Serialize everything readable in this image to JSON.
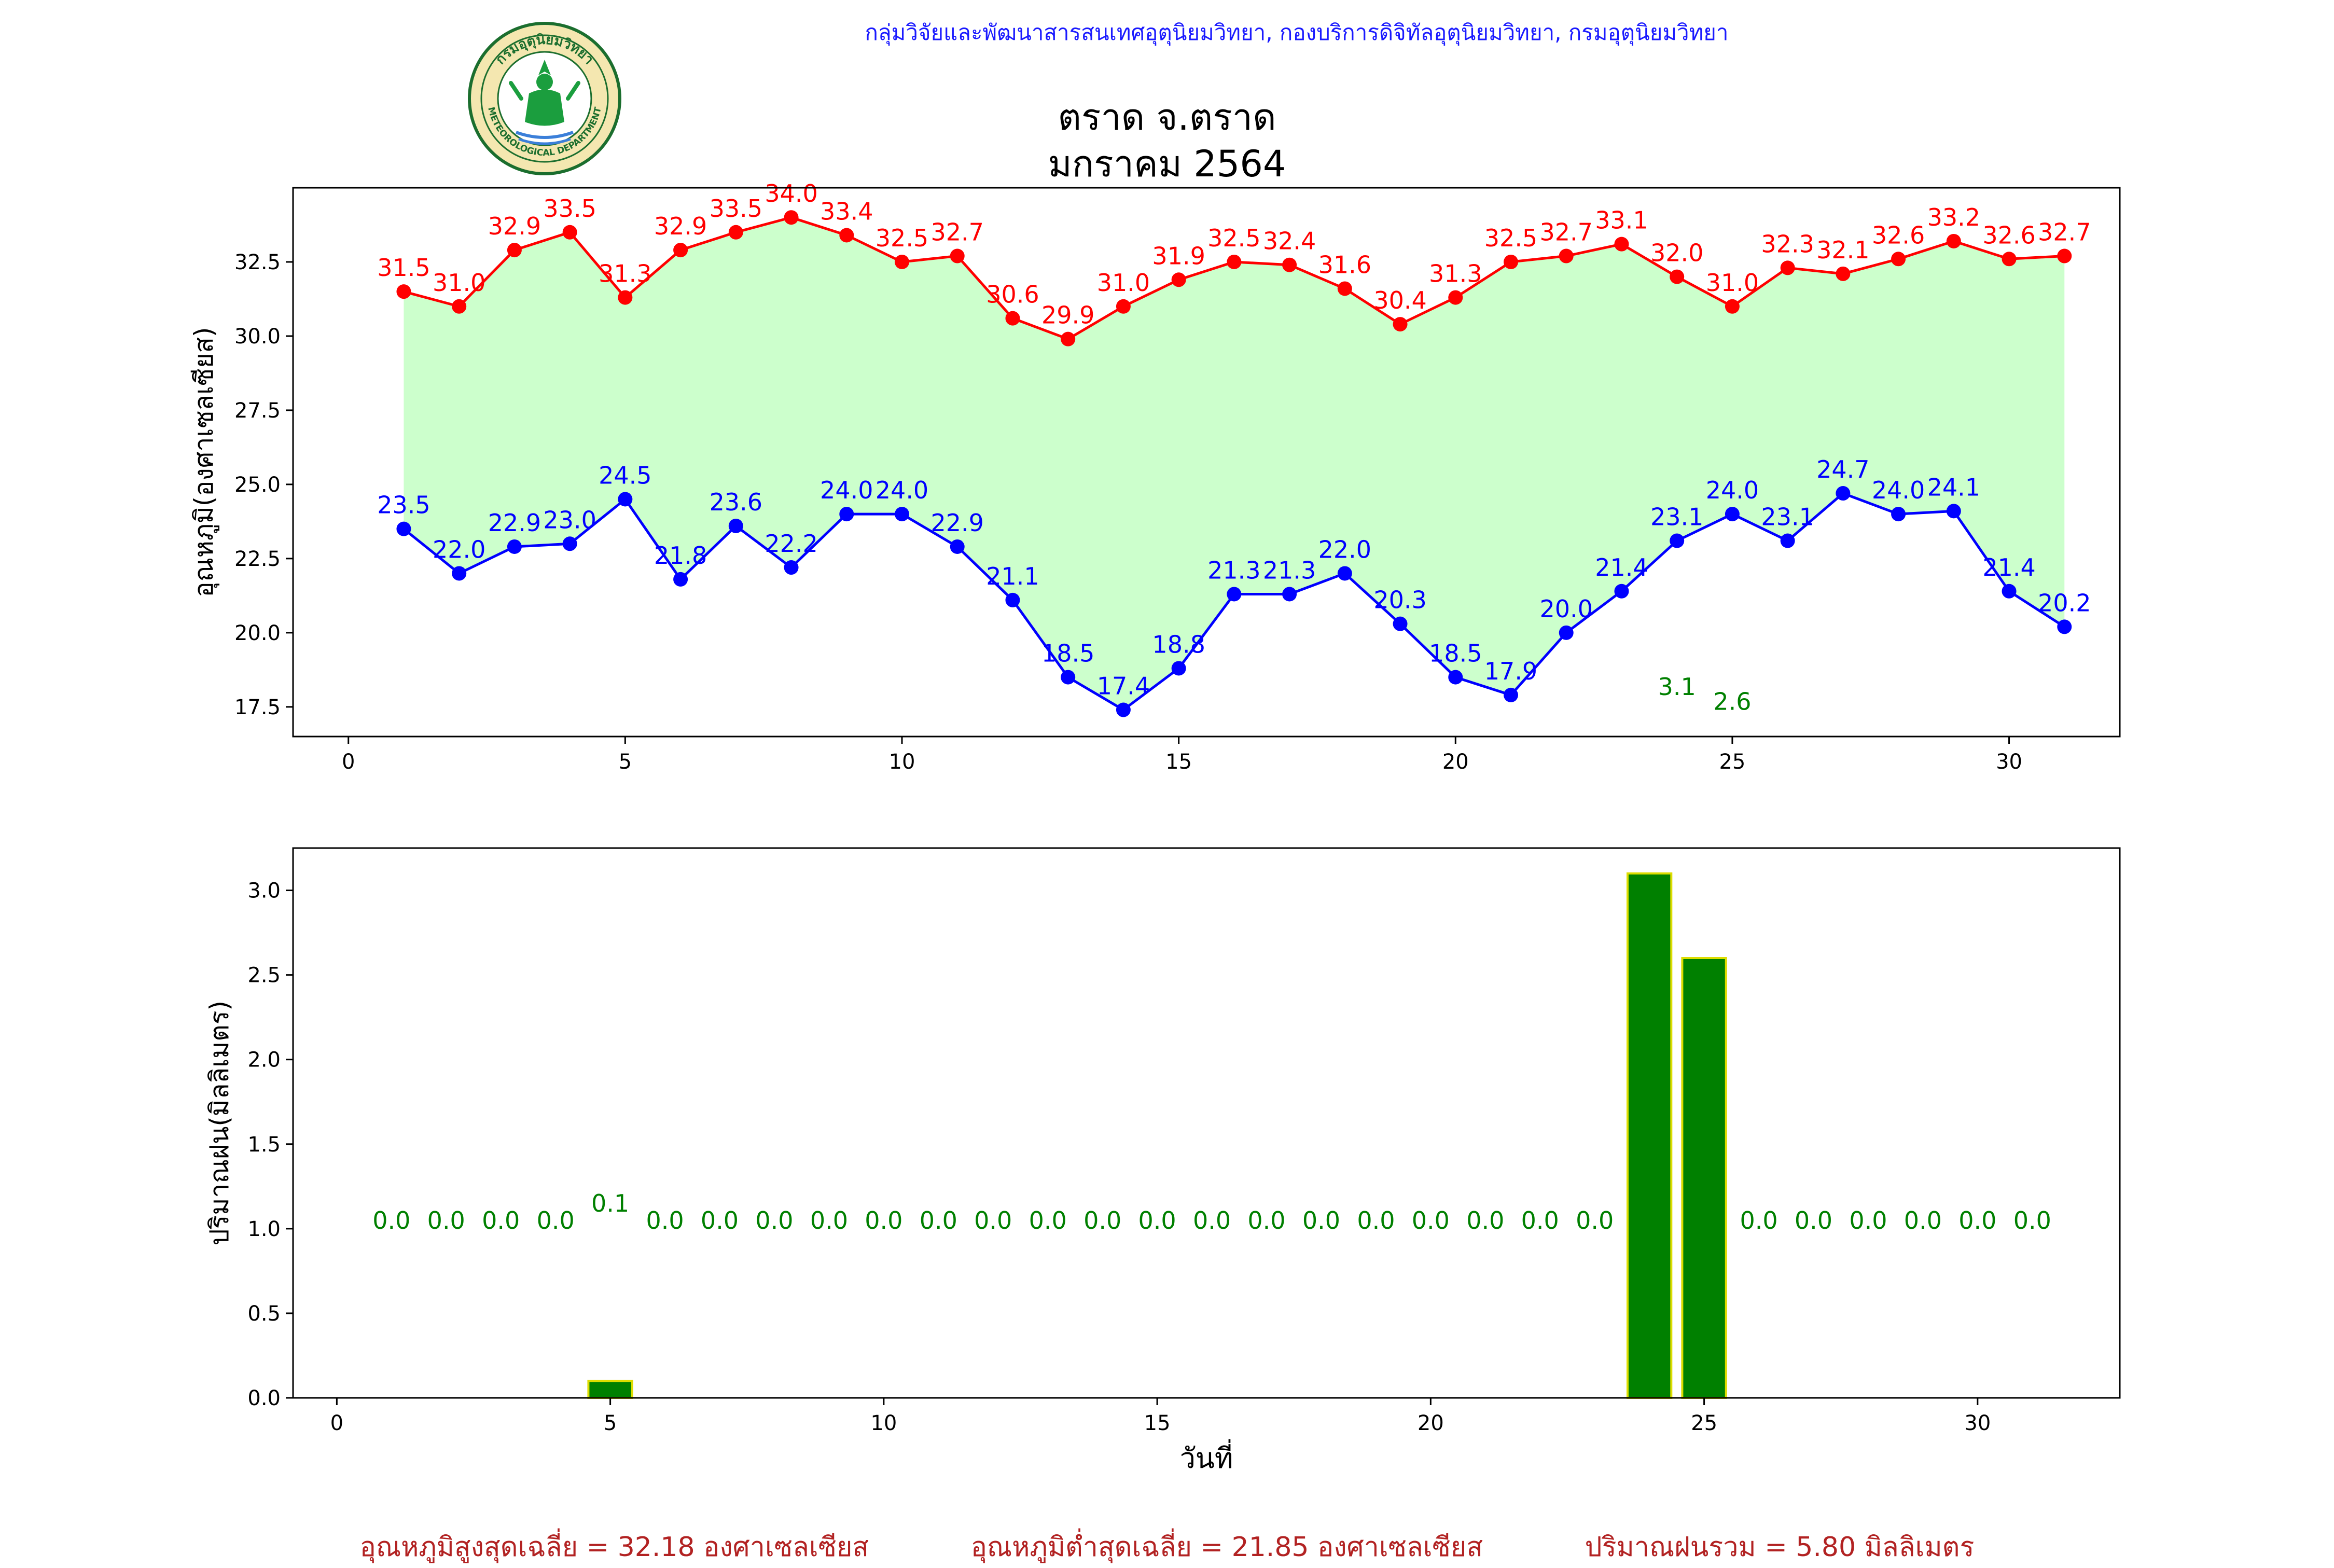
{
  "header": {
    "organization": "กลุ่มวิจัยและพัฒนาสารสนเทศอุตุนิยมวิทยา, กองบริการดิจิทัลอุตุนิยมวิทยา, กรมอุตุนิยมวิทยา",
    "title_line1": "ตราด จ.ตราด",
    "title_line2": "มกราคม 2564",
    "logo_top_text": "กรมอุตุนิยมวิทยา",
    "logo_bottom_text": "METEOROLOGICAL DEPARTMENT"
  },
  "colors": {
    "max_temp": "#ff0000",
    "min_temp": "#0000ff",
    "fill": "#ccffcc",
    "rain_bar": "#008000",
    "rain_edge": "#dddd00",
    "header_text": "#1a1aff",
    "footer_text": "#b22222"
  },
  "chart_data": [
    {
      "type": "line",
      "ylabel": "อุณหภูมิ(องศาเซลเซียส)",
      "xlim": [
        -1,
        32
      ],
      "ylim": [
        16.5,
        35.0
      ],
      "xticks": [
        0,
        5,
        10,
        15,
        20,
        25,
        30
      ],
      "yticks": [
        17.5,
        20.0,
        22.5,
        25.0,
        27.5,
        30.0,
        32.5
      ],
      "x": [
        1,
        2,
        3,
        4,
        5,
        6,
        7,
        8,
        9,
        10,
        11,
        12,
        13,
        14,
        15,
        16,
        17,
        18,
        19,
        20,
        21,
        22,
        23,
        24,
        25,
        26,
        27,
        28,
        29,
        30,
        31
      ],
      "series": [
        {
          "key": "max",
          "values": [
            31.5,
            31.0,
            32.9,
            33.5,
            31.3,
            32.9,
            33.5,
            34.0,
            33.4,
            32.5,
            32.7,
            30.6,
            29.9,
            31.0,
            31.9,
            32.5,
            32.4,
            31.6,
            30.4,
            31.3,
            32.5,
            32.7,
            33.1,
            32.0,
            31.0,
            32.3,
            32.1,
            32.6,
            33.2,
            32.6,
            32.7
          ]
        },
        {
          "key": "min",
          "values": [
            23.5,
            22.0,
            22.9,
            23.0,
            24.5,
            21.8,
            23.6,
            22.2,
            24.0,
            24.0,
            22.9,
            21.1,
            18.5,
            17.4,
            18.8,
            21.3,
            21.3,
            22.0,
            20.3,
            18.5,
            17.9,
            20.0,
            21.4,
            23.1,
            24.0,
            23.1,
            24.7,
            24.0,
            24.1,
            21.4,
            20.2
          ]
        }
      ],
      "overflow_labels": [
        {
          "x": 24,
          "value": 3.1
        },
        {
          "x": 25,
          "value": 2.6
        }
      ],
      "fill_between": true
    },
    {
      "type": "bar",
      "ylabel": "ปริมาณฝน(มิลลิเมตร)",
      "xlabel": "วันที่",
      "xlim": [
        -0.8,
        32.6
      ],
      "ylim": [
        0,
        3.25
      ],
      "xticks": [
        0,
        5,
        10,
        15,
        20,
        25,
        30
      ],
      "yticks": [
        0.0,
        0.5,
        1.0,
        1.5,
        2.0,
        2.5,
        3.0
      ],
      "x": [
        1,
        2,
        3,
        4,
        5,
        6,
        7,
        8,
        9,
        10,
        11,
        12,
        13,
        14,
        15,
        16,
        17,
        18,
        19,
        20,
        21,
        22,
        23,
        24,
        25,
        26,
        27,
        28,
        29,
        30,
        31
      ],
      "values": [
        0.0,
        0.0,
        0.0,
        0.0,
        0.1,
        0.0,
        0.0,
        0.0,
        0.0,
        0.0,
        0.0,
        0.0,
        0.0,
        0.0,
        0.0,
        0.0,
        0.0,
        0.0,
        0.0,
        0.0,
        0.0,
        0.0,
        0.0,
        3.1,
        2.6,
        0.0,
        0.0,
        0.0,
        0.0,
        0.0,
        0.0
      ],
      "label_y": 1.0
    }
  ],
  "footer": {
    "avg_max": "อุณหภูมิสูงสุดเฉลี่ย = 32.18 องศาเซลเซียส",
    "avg_min": "อุณหภูมิต่ำสุดเฉลี่ย = 21.85 องศาเซลเซียส",
    "total_rain": "ปริมาณฝนรวม = 5.80 มิลลิเมตร"
  }
}
